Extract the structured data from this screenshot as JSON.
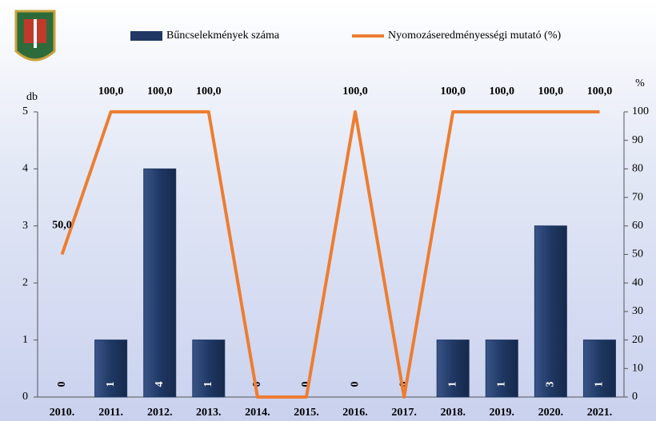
{
  "chart_data": {
    "type": "bar-line",
    "categories": [
      "2010.",
      "2011.",
      "2012.",
      "2013.",
      "2014.",
      "2015.",
      "2016.",
      "2017.",
      "2018.",
      "2019.",
      "2020.",
      "2021."
    ],
    "series": [
      {
        "name": "Bűncselekmények száma",
        "color": "#1f3864",
        "type": "bar",
        "values": [
          0,
          1,
          4,
          1,
          0,
          0,
          0,
          0,
          1,
          1,
          3,
          1
        ]
      },
      {
        "name": "Nyomozáseredményességi mutató (%)",
        "color": "#ed7d31",
        "type": "line",
        "axis": "y2",
        "values": [
          50,
          100,
          100,
          100,
          0,
          0,
          100,
          0,
          100,
          100,
          100,
          100
        ],
        "value_labels": [
          "50,0",
          "100,0",
          "100,0",
          "100,0",
          null,
          null,
          "100,0",
          null,
          "100,0",
          "100,0",
          "100,0",
          "100,0"
        ]
      }
    ],
    "y_label": "db",
    "y2_label": "%",
    "ylim": [
      0,
      5
    ],
    "yticks": [
      0,
      1,
      2,
      3,
      4,
      5
    ],
    "y2lim": [
      0,
      100
    ],
    "y2ticks": [
      0,
      10,
      20,
      30,
      40,
      50,
      60,
      70,
      80,
      90,
      100
    ]
  }
}
